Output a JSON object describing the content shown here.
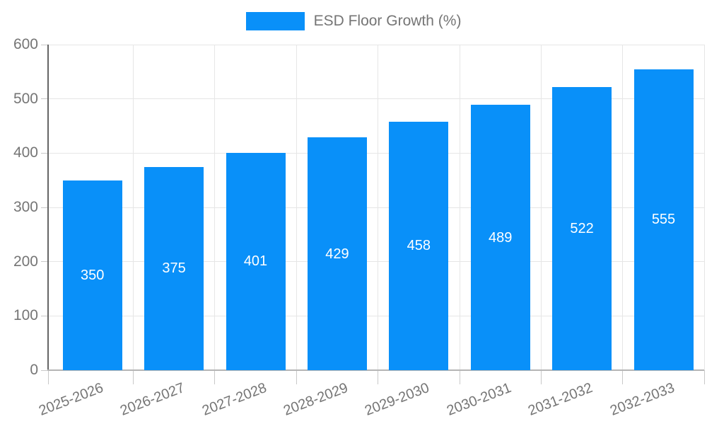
{
  "chart_data": {
    "type": "bar",
    "title": "ESD Floor Growth (%)",
    "legend": [
      "ESD Floor Growth (%)"
    ],
    "legend_position": "top",
    "categories": [
      "2025-2026",
      "2026-2027",
      "2027-2028",
      "2028-2029",
      "2029-2030",
      "2030-2031",
      "2031-2032",
      "2032-2033"
    ],
    "series": [
      {
        "name": "ESD Floor Growth (%)",
        "values": [
          350,
          375,
          401,
          429,
          458,
          489,
          522,
          555
        ]
      }
    ],
    "data_labels": [
      "350",
      "375",
      "401",
      "429",
      "458",
      "489",
      "522",
      "555"
    ],
    "xlabel": "",
    "ylabel": "",
    "ylim": [
      0,
      600
    ],
    "yticks": [
      0,
      100,
      200,
      300,
      400,
      500,
      600
    ],
    "grid": true,
    "colors": {
      "bar": "#0990f9",
      "bar_label": "#ffffff",
      "axis_text": "#757575",
      "gridline": "#e6e6e6",
      "y_axis_line": "#666666",
      "x_axis_line": "#b5b5b5",
      "tick": "#c9c9c9",
      "background": "#ffffff"
    }
  }
}
